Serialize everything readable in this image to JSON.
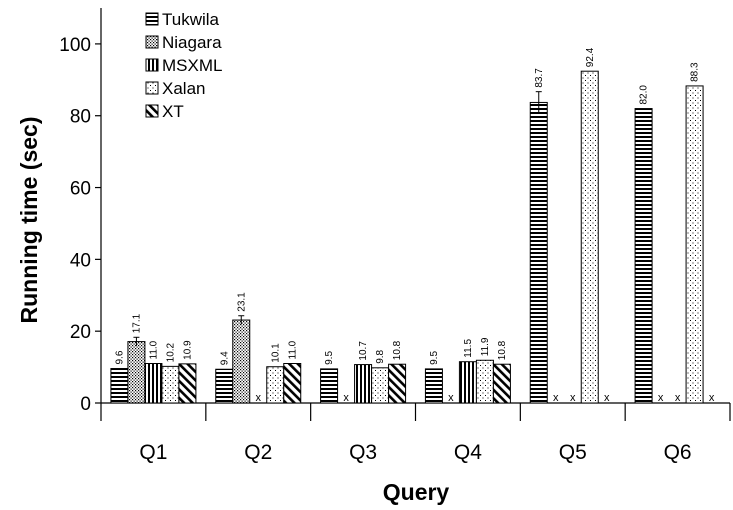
{
  "chart_data": {
    "type": "bar",
    "title": "",
    "xlabel": "Query",
    "ylabel": "Running time (sec)",
    "ylim": [
      0,
      110
    ],
    "yticks": [
      0,
      20,
      40,
      60,
      80,
      100
    ],
    "grid": false,
    "legend_position": "top-left",
    "missing_marker": "x",
    "categories": [
      "Q1",
      "Q2",
      "Q3",
      "Q4",
      "Q5",
      "Q6"
    ],
    "series": [
      {
        "name": "Tukwila",
        "pattern": "horizontal-stripes",
        "values": [
          9.6,
          9.4,
          9.5,
          9.5,
          83.7,
          82.0
        ],
        "labels": [
          "9.6",
          "9.4",
          "9.5",
          "9.5",
          "83.7",
          "82.0"
        ],
        "error": [
          0,
          0,
          0,
          0,
          3,
          0
        ]
      },
      {
        "name": "Niagara",
        "pattern": "dense-dots",
        "values": [
          17.1,
          23.1,
          null,
          null,
          null,
          null
        ],
        "labels": [
          "17.1",
          "23.1",
          null,
          null,
          null,
          null
        ],
        "error": [
          1.2,
          1.2,
          0,
          0,
          0,
          0
        ]
      },
      {
        "name": "MSXML",
        "pattern": "vertical-stripes",
        "values": [
          11.0,
          null,
          10.7,
          11.5,
          null,
          null
        ],
        "labels": [
          "11.0",
          null,
          "10.7",
          "11.5",
          null,
          null
        ],
        "error": [
          0,
          0,
          0,
          0,
          0,
          0
        ]
      },
      {
        "name": "Xalan",
        "pattern": "sparse-dots",
        "values": [
          10.2,
          10.1,
          9.8,
          11.9,
          92.4,
          88.3
        ],
        "labels": [
          "10.2",
          "10.1",
          "9.8",
          "11.9",
          "92.4",
          "88.3"
        ],
        "error": [
          0,
          0,
          0,
          0,
          0,
          0
        ]
      },
      {
        "name": "XT",
        "pattern": "diagonal-stripes",
        "values": [
          10.9,
          11.0,
          10.8,
          10.8,
          null,
          null
        ],
        "labels": [
          "10.9",
          "11.0",
          "10.8",
          "10.8",
          null,
          null
        ],
        "error": [
          0,
          0,
          0,
          0,
          0,
          0
        ]
      }
    ]
  }
}
